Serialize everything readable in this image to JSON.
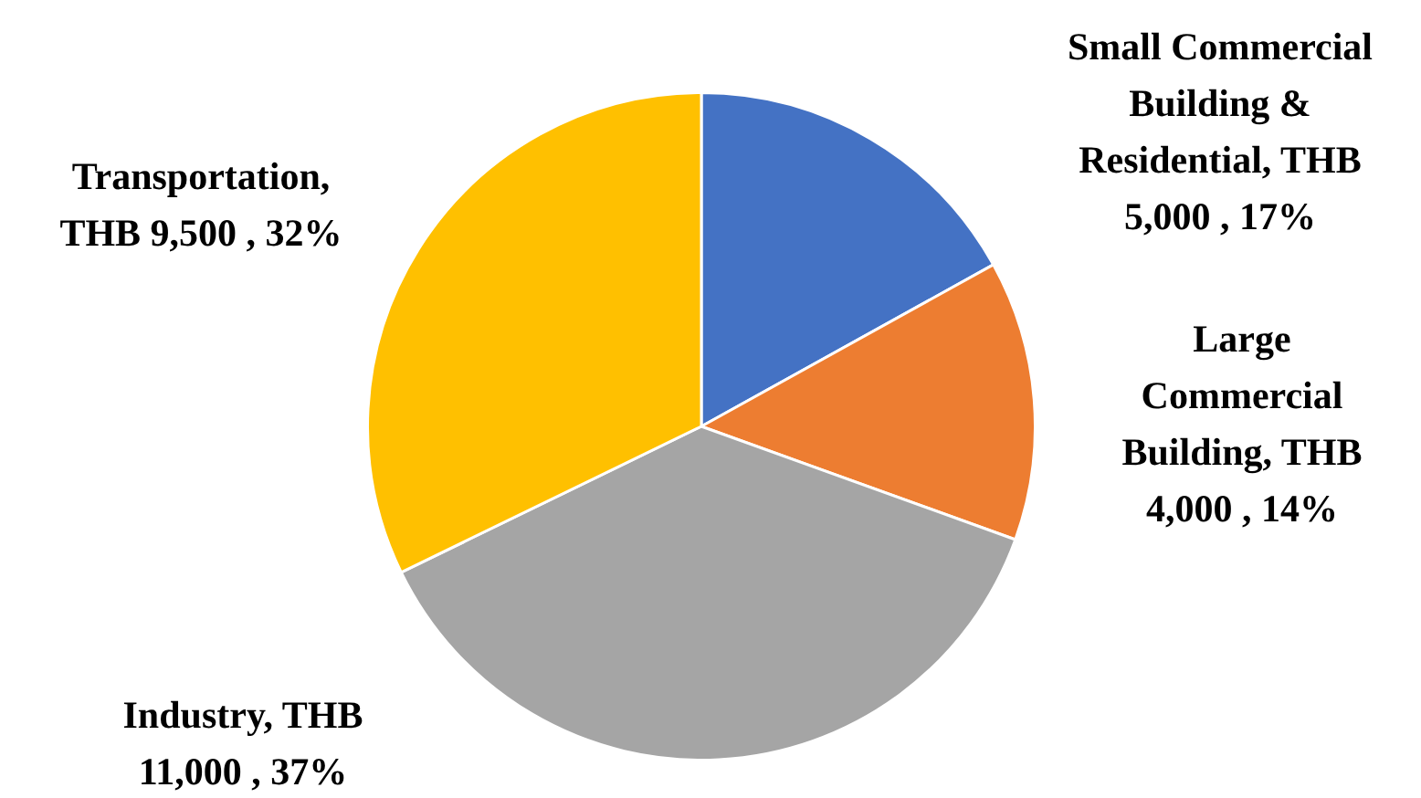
{
  "chart_data": {
    "type": "pie",
    "categories": [
      "Small Commercial Building & Residential",
      "Large Commercial Building",
      "Industry",
      "Transportation"
    ],
    "values": [
      5000,
      4000,
      11000,
      9500
    ],
    "colors": [
      "#4472c4",
      "#ed7d31",
      "#a5a5a5",
      "#ffc000"
    ],
    "value_labels": [
      ", THB 5,000 , 17%",
      ", THB 4,000 , 14%",
      ", THB 11,000 , 37%",
      ", THB 9,500 , 32%"
    ],
    "legend": false
  }
}
